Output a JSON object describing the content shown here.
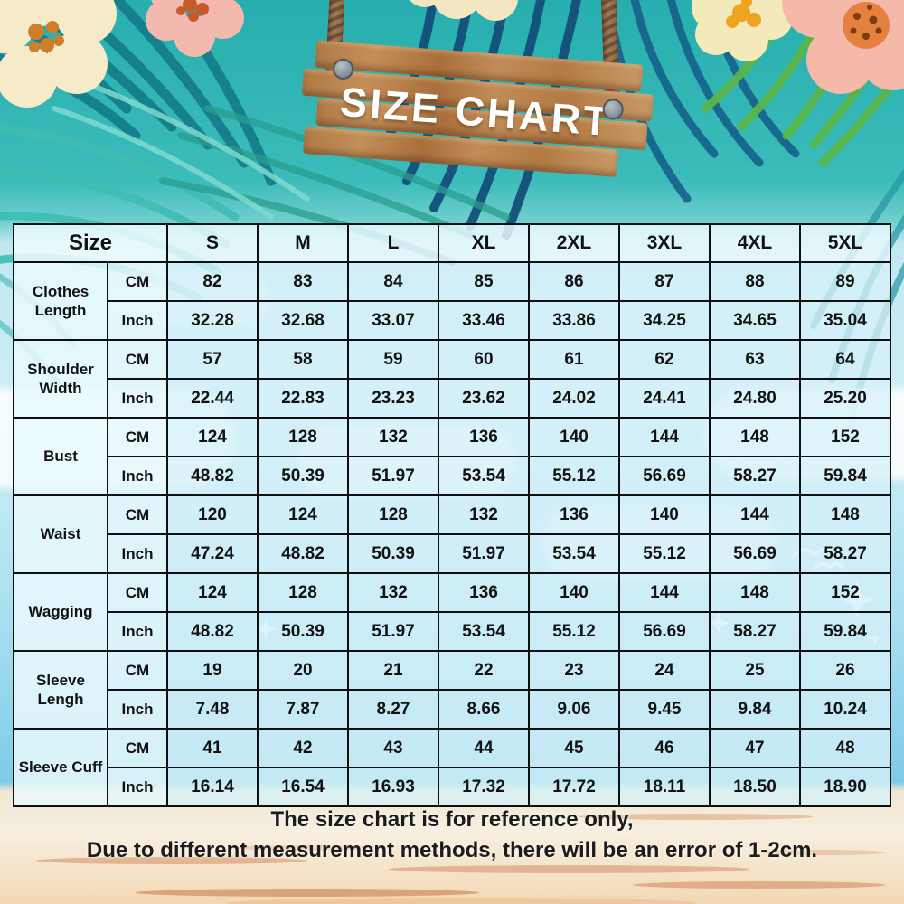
{
  "chart_data": {
    "type": "table",
    "title": "SIZE CHART",
    "corner_label": "Size",
    "columns": [
      "S",
      "M",
      "L",
      "XL",
      "2XL",
      "3XL",
      "4XL",
      "5XL"
    ],
    "unit_labels": {
      "cm": "CM",
      "inch": "Inch"
    },
    "rows": [
      {
        "label": "Clothes Length",
        "cm": [
          "82",
          "83",
          "84",
          "85",
          "86",
          "87",
          "88",
          "89"
        ],
        "inch": [
          "32.28",
          "32.68",
          "33.07",
          "33.46",
          "33.86",
          "34.25",
          "34.65",
          "35.04"
        ]
      },
      {
        "label": "Shoulder Width",
        "cm": [
          "57",
          "58",
          "59",
          "60",
          "61",
          "62",
          "63",
          "64"
        ],
        "inch": [
          "22.44",
          "22.83",
          "23.23",
          "23.62",
          "24.02",
          "24.41",
          "24.80",
          "25.20"
        ]
      },
      {
        "label": "Bust",
        "cm": [
          "124",
          "128",
          "132",
          "136",
          "140",
          "144",
          "148",
          "152"
        ],
        "inch": [
          "48.82",
          "50.39",
          "51.97",
          "53.54",
          "55.12",
          "56.69",
          "58.27",
          "59.84"
        ]
      },
      {
        "label": "Waist",
        "cm": [
          "120",
          "124",
          "128",
          "132",
          "136",
          "140",
          "144",
          "148"
        ],
        "inch": [
          "47.24",
          "48.82",
          "50.39",
          "51.97",
          "53.54",
          "55.12",
          "56.69",
          "58.27"
        ]
      },
      {
        "label": "Wagging",
        "cm": [
          "124",
          "128",
          "132",
          "136",
          "140",
          "144",
          "148",
          "152"
        ],
        "inch": [
          "48.82",
          "50.39",
          "51.97",
          "53.54",
          "55.12",
          "56.69",
          "58.27",
          "59.84"
        ]
      },
      {
        "label": "Sleeve Lengh",
        "cm": [
          "19",
          "20",
          "21",
          "22",
          "23",
          "24",
          "25",
          "26"
        ],
        "inch": [
          "7.48",
          "7.87",
          "8.27",
          "8.66",
          "9.06",
          "9.45",
          "9.84",
          "10.24"
        ]
      },
      {
        "label": "Sleeve Cuff",
        "cm": [
          "41",
          "42",
          "43",
          "44",
          "45",
          "46",
          "47",
          "48"
        ],
        "inch": [
          "16.14",
          "16.54",
          "16.93",
          "17.32",
          "17.72",
          "18.11",
          "18.50",
          "18.90"
        ]
      }
    ],
    "layout_hints": {
      "units_per_row": 2,
      "grid": true,
      "legend": "none"
    }
  },
  "footnote": {
    "line1": "The size chart is for reference only,",
    "line2": "Due to different measurement methods, there will be an error of 1-2cm."
  },
  "colors": {
    "background_teal": "#2fb3b3",
    "sky_blue": "#c3e9f3",
    "ocean_blue": "#7ccae6",
    "sand": "#f4ddbd",
    "wood_brown": "#b5814d",
    "rope_brown": "#96704f",
    "table_cell_blue": "#d7f0f6",
    "table_border": "#101010",
    "sign_text": "#ffffff",
    "body_text": "#1b1b1b"
  },
  "decor": {
    "palm_leaves": "palm-fronds-decoration",
    "flowers": "tropical-flowers-decoration",
    "sign": "hanging-wooden-sign",
    "ropes": "twisted-ropes",
    "clouds": "clouds-decoration",
    "seagulls": "seagulls-decoration",
    "sparkles": "sparkle-glints-decoration",
    "sand_streaks": "sand-streaks-decoration"
  }
}
